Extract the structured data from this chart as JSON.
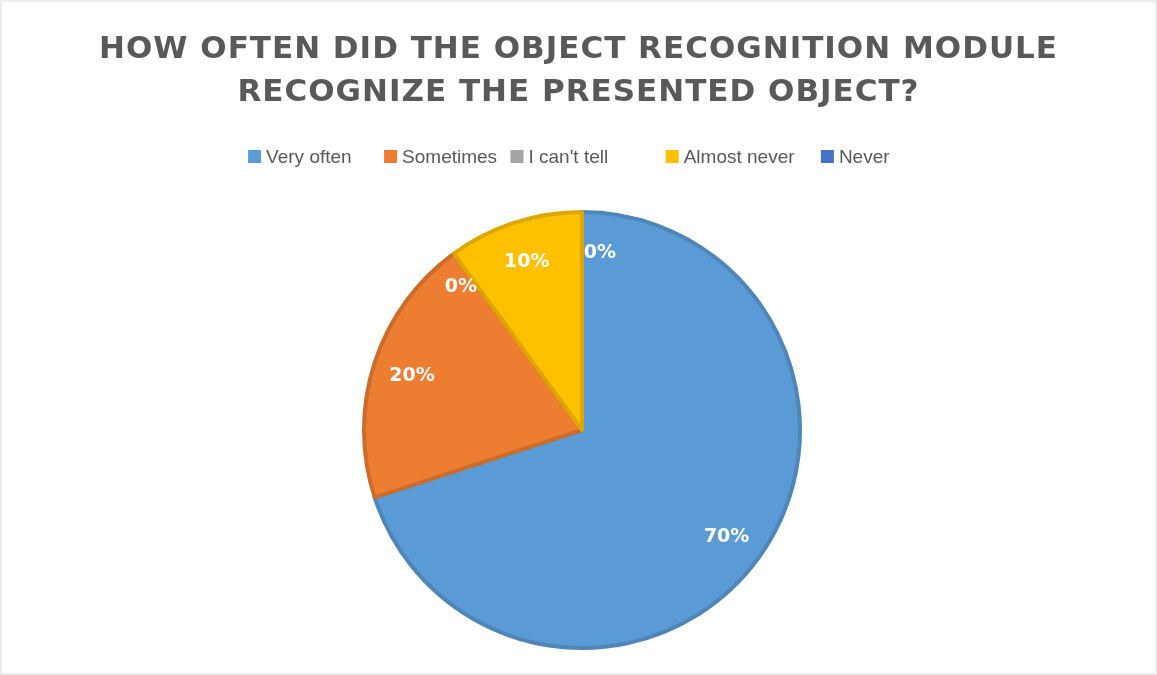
{
  "chart_data": {
    "type": "pie",
    "title": "HOW OFTEN DID THE OBJECT RECOGNITION MODULE RECOGNIZE THE PRESENTED OBJECT?",
    "categories": [
      "Very often",
      "Sometimes",
      "I can't tell",
      "Almost never",
      "Never"
    ],
    "values": [
      70,
      20,
      0,
      10,
      0
    ],
    "colors": [
      "#5b9bd5",
      "#ed7d31",
      "#a5a5a5",
      "#ffc000",
      "#4472c4"
    ],
    "value_labels": [
      "70%",
      "20%",
      "0%",
      "10%",
      "0%"
    ],
    "legend": "top"
  }
}
